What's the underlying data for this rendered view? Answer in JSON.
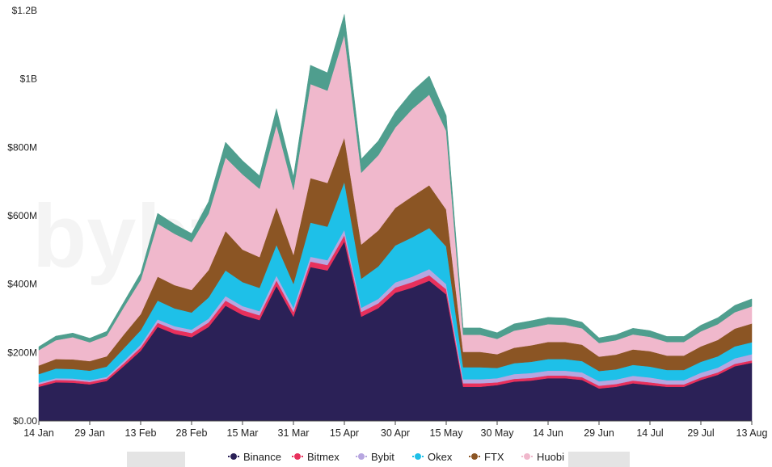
{
  "chart_data": {
    "type": "area",
    "stacked": true,
    "title": "",
    "xlabel": "",
    "ylabel": "",
    "ylim": [
      0,
      1200000000
    ],
    "y_ticks": [
      {
        "value": 0,
        "label": "$0.00"
      },
      {
        "value": 200000000,
        "label": "$200M"
      },
      {
        "value": 400000000,
        "label": "$400M"
      },
      {
        "value": 600000000,
        "label": "$600M"
      },
      {
        "value": 800000000,
        "label": "$800M"
      },
      {
        "value": 1000000000,
        "label": "$1B"
      },
      {
        "value": 1200000000,
        "label": "$1.2B"
      }
    ],
    "x_ticks": [
      "14 Jan",
      "29 Jan",
      "13 Feb",
      "28 Feb",
      "15 Mar",
      "31 Mar",
      "15 Apr",
      "30 Apr",
      "15 May",
      "30 May",
      "14 Jun",
      "29 Jun",
      "14 Jul",
      "29 Jul",
      "13 Aug"
    ],
    "x": [
      "14 Jan",
      "19 Jan",
      "24 Jan",
      "29 Jan",
      "3 Feb",
      "8 Feb",
      "13 Feb",
      "18 Feb",
      "23 Feb",
      "28 Feb",
      "5 Mar",
      "10 Mar",
      "15 Mar",
      "20 Mar",
      "25 Mar",
      "31 Mar",
      "5 Apr",
      "10 Apr",
      "15 Apr",
      "20 Apr",
      "25 Apr",
      "30 Apr",
      "5 May",
      "10 May",
      "15 May",
      "20 May",
      "25 May",
      "30 May",
      "4 Jun",
      "9 Jun",
      "14 Jun",
      "19 Jun",
      "24 Jun",
      "29 Jun",
      "4 Jul",
      "9 Jul",
      "14 Jul",
      "19 Jul",
      "24 Jul",
      "29 Jul",
      "3 Aug",
      "8 Aug",
      "13 Aug"
    ],
    "series": [
      {
        "name": "Binance",
        "color": "#2b2157",
        "values": [
          100,
          113,
          112,
          107,
          117,
          160,
          205,
          275,
          255,
          245,
          275,
          337,
          310,
          295,
          395,
          305,
          450,
          440,
          525,
          305,
          330,
          375,
          390,
          410,
          370,
          100,
          100,
          105,
          115,
          118,
          125,
          125,
          120,
          95,
          100,
          110,
          105,
          100,
          100,
          120,
          135,
          160,
          170
        ]
      },
      {
        "name": "Bitmex",
        "color": "#e8305c",
        "values": [
          7,
          7,
          7,
          7,
          7,
          8,
          10,
          12,
          12,
          12,
          13,
          15,
          14,
          14,
          16,
          14,
          16,
          16,
          18,
          14,
          14,
          15,
          16,
          16,
          15,
          10,
          10,
          8,
          8,
          8,
          8,
          8,
          8,
          8,
          8,
          8,
          8,
          7,
          7,
          7,
          7,
          7,
          7
        ]
      },
      {
        "name": "Bybit",
        "color": "#b7a6e0",
        "values": [
          5,
          5,
          5,
          5,
          5,
          7,
          8,
          10,
          10,
          10,
          11,
          13,
          12,
          12,
          14,
          12,
          14,
          14,
          16,
          12,
          13,
          15,
          16,
          18,
          15,
          12,
          12,
          12,
          14,
          14,
          14,
          14,
          14,
          13,
          13,
          14,
          14,
          12,
          12,
          14,
          14,
          16,
          18
        ]
      },
      {
        "name": "Okex",
        "color": "#1ec0e8",
        "values": [
          25,
          28,
          28,
          28,
          30,
          37,
          42,
          55,
          52,
          50,
          62,
          75,
          70,
          68,
          90,
          70,
          100,
          98,
          140,
          85,
          95,
          108,
          115,
          120,
          110,
          35,
          35,
          30,
          32,
          33,
          34,
          34,
          33,
          30,
          30,
          32,
          32,
          30,
          30,
          32,
          33,
          35,
          35
        ]
      },
      {
        "name": "FTX",
        "color": "#8b5524",
        "values": [
          25,
          28,
          28,
          28,
          30,
          40,
          47,
          70,
          68,
          66,
          80,
          115,
          95,
          90,
          110,
          85,
          130,
          128,
          130,
          100,
          105,
          110,
          120,
          125,
          108,
          45,
          45,
          40,
          45,
          48,
          50,
          50,
          48,
          42,
          43,
          45,
          45,
          42,
          42,
          45,
          48,
          52,
          55
        ]
      },
      {
        "name": "Huobi",
        "color": "#f0b8cc",
        "values": [
          45,
          55,
          65,
          55,
          60,
          80,
          100,
          155,
          150,
          140,
          165,
          215,
          220,
          200,
          240,
          190,
          275,
          270,
          300,
          210,
          220,
          235,
          255,
          265,
          230,
          50,
          50,
          45,
          50,
          52,
          52,
          50,
          48,
          40,
          42,
          44,
          42,
          40,
          40,
          44,
          46,
          48,
          50
        ]
      },
      {
        "color": "#4f9e8e",
        "values": [
          10,
          12,
          12,
          12,
          13,
          15,
          20,
          30,
          28,
          25,
          35,
          45,
          40,
          38,
          48,
          38,
          55,
          52,
          60,
          40,
          42,
          45,
          52,
          55,
          45,
          20,
          20,
          18,
          20,
          20,
          20,
          20,
          18,
          15,
          16,
          18,
          18,
          16,
          16,
          18,
          19,
          20,
          22
        ]
      }
    ]
  }
}
